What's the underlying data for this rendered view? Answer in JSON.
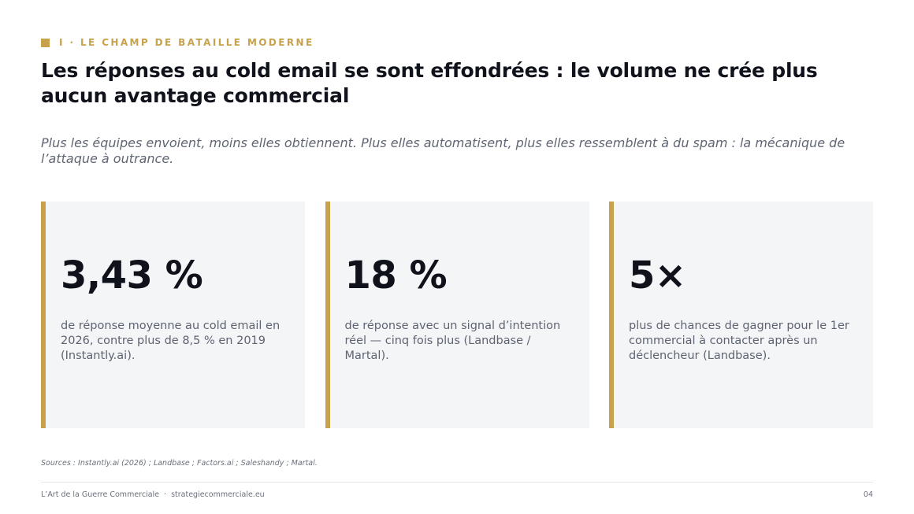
{
  "section": {
    "label": "I · LE CHAMP DE BATAILLE MODERNE"
  },
  "title": "Les réponses au cold email se sont effondrées : le volume ne crée plus aucun avantage commercial",
  "subtitle": "Plus les équipes envoient, moins elles obtiennent. Plus elles automatisent, plus elles ressemblent à du spam : la mécanique de l’attaque à outrance.",
  "accent_color": "#c7a24d",
  "stats": [
    {
      "value": "3,43 %",
      "description": "de réponse moyenne au cold email en 2026, contre plus de 8,5 % en 2019 (Instantly.ai)."
    },
    {
      "value": "18 %",
      "description": "de réponse avec un signal d’intention réel — cinq fois plus (Landbase / Martal)."
    },
    {
      "value": "5×",
      "description": "plus de chances de gagner pour le 1er commercial à contacter après un déclencheur (Landbase)."
    }
  ],
  "sources": "Sources : Instantly.ai (2026) ; Landbase ; Factors.ai ; Saleshandy ; Martal.",
  "footer": {
    "brand": "L’Art de la Guerre Commerciale",
    "separator": "·",
    "website": "strategiecommerciale.eu",
    "page_number": "04"
  }
}
